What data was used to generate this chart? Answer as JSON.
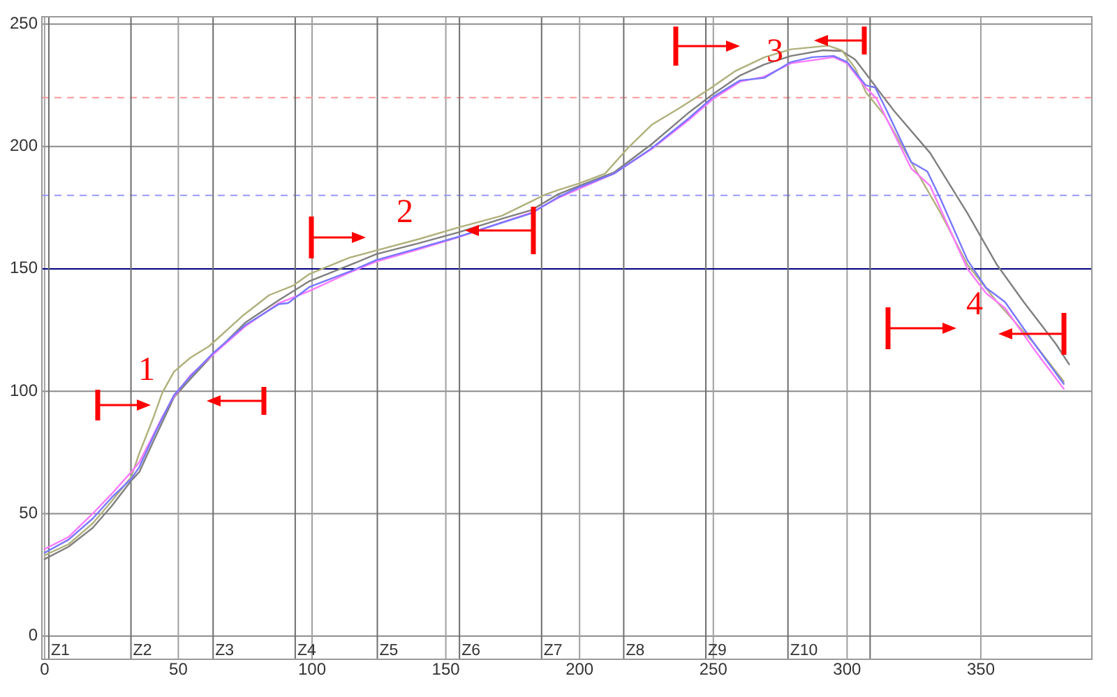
{
  "chart_data": {
    "type": "line",
    "xlim": [
      -1,
      391.5
    ],
    "xticks": [
      0,
      50,
      100,
      150,
      200,
      250,
      300,
      350
    ],
    "ylim": [
      -9.5,
      253
    ],
    "yticks": [
      0,
      50,
      100,
      150,
      200,
      250
    ],
    "grid": true,
    "series": [
      {
        "color": "#7f7f7f",
        "x": [
          0,
          9,
          18,
          25,
          32.4,
          35.4,
          40.6,
          48.4,
          54.5,
          63,
          75,
          88,
          99,
          114,
          124,
          140,
          155,
          171,
          182,
          192,
          200,
          213,
          227,
          241,
          250,
          260,
          269,
          279,
          291,
          298,
          303,
          307,
          317.5,
          331,
          345,
          356,
          366,
          378,
          383
        ],
        "values": [
          31.4,
          36.5,
          44.2,
          53,
          63.5,
          67,
          79.4,
          97.6,
          105,
          115,
          128,
          137.5,
          145,
          151.5,
          156,
          160.5,
          165,
          170.5,
          174,
          180.5,
          184,
          189.5,
          201,
          214,
          221.5,
          229,
          233.5,
          237,
          239.3,
          239,
          235.5,
          229.8,
          214.6,
          197.4,
          172.7,
          151.7,
          136.5,
          119.4,
          111
        ]
      },
      {
        "color": "#b0b07c",
        "x": [
          0,
          9,
          18,
          25,
          32.4,
          35.4,
          40.6,
          44,
          48.4,
          54.5,
          61.5,
          74,
          84,
          93,
          99,
          114,
          124,
          140,
          155,
          171,
          187,
          192,
          200,
          209.5,
          218,
          227,
          237,
          248,
          258,
          269,
          279,
          293,
          298,
          303,
          307,
          314,
          324,
          335,
          345,
          356,
          370,
          381
        ],
        "values": [
          33,
          37.5,
          46,
          55,
          65,
          74.6,
          89,
          99.4,
          108,
          113.7,
          118.4,
          130.8,
          139.3,
          143.2,
          147.9,
          154.6,
          157.5,
          162.2,
          167,
          171.7,
          180.3,
          182.2,
          185,
          188.9,
          199.3,
          208.9,
          215.5,
          223.1,
          230.7,
          236.4,
          239.7,
          241.2,
          239.3,
          232,
          222.2,
          212.7,
          193.6,
          172.7,
          151.7,
          136.5,
          119.4,
          104
        ]
      },
      {
        "color": "#ff77ff",
        "x": [
          0,
          9,
          18,
          25,
          32.4,
          35.4,
          40.6,
          44,
          48.4,
          54.5,
          63,
          75,
          87.6,
          99,
          114,
          124,
          140,
          155,
          171,
          182,
          192,
          213,
          227,
          241,
          250,
          260,
          269,
          279,
          295,
          300,
          307,
          311,
          324,
          331,
          345,
          352,
          359,
          370,
          381
        ],
        "values": [
          35.5,
          40.5,
          50,
          58,
          67,
          71,
          82,
          89.5,
          98,
          106.5,
          115,
          126.5,
          136,
          141,
          148.5,
          153,
          158,
          163,
          169,
          173,
          179,
          189,
          199,
          211,
          219.5,
          226.5,
          228.5,
          234,
          236.5,
          234,
          224,
          219.6,
          191,
          184,
          150,
          140,
          134,
          117,
          101
        ]
      },
      {
        "color": "#7777ff",
        "x": [
          0,
          9,
          18,
          25,
          32.4,
          35.4,
          40.6,
          44,
          48.4,
          54.5,
          63,
          75,
          87.6,
          91,
          99,
          114,
          124,
          140,
          155,
          171,
          182,
          192,
          199,
          213,
          227,
          241,
          250,
          260,
          269,
          279,
          287,
          295,
          300,
          307,
          310.5,
          314,
          324,
          330,
          335,
          345,
          352,
          359,
          370,
          381
        ],
        "values": [
          34,
          39.4,
          48,
          56.5,
          64.2,
          69,
          81.3,
          89,
          98.5,
          106,
          115.6,
          127,
          135.6,
          136,
          142.6,
          148.9,
          153.6,
          158.5,
          163.2,
          168.9,
          172.7,
          179.3,
          183,
          189,
          199.3,
          211.7,
          220.3,
          227,
          228,
          234.5,
          236.5,
          237,
          234.5,
          225,
          224.1,
          216.5,
          193.6,
          189.8,
          178.4,
          153.6,
          142.2,
          136.5,
          119.4,
          103
        ]
      }
    ],
    "ref_lines": [
      {
        "axis": "y",
        "value": 220,
        "color": "#ff9999",
        "line_style": "dashed"
      },
      {
        "axis": "y",
        "value": 180,
        "color": "#9999ff",
        "line_style": "dashed"
      },
      {
        "axis": "y",
        "value": 150,
        "color": "#000080",
        "line_style": "solid"
      },
      {
        "axis": "x",
        "value": 1.6,
        "label": "Z1"
      },
      {
        "axis": "x",
        "value": 32.3,
        "label": "Z2"
      },
      {
        "axis": "x",
        "value": 63,
        "label": "Z3"
      },
      {
        "axis": "x",
        "value": 93.7,
        "label": "Z4"
      },
      {
        "axis": "x",
        "value": 124.4,
        "label": "Z5"
      },
      {
        "axis": "x",
        "value": 155.1,
        "label": "Z6"
      },
      {
        "axis": "x",
        "value": 185.8,
        "label": "Z7"
      },
      {
        "axis": "x",
        "value": 216.5,
        "label": "Z8"
      },
      {
        "axis": "x",
        "value": 247.2,
        "label": "Z9"
      },
      {
        "axis": "x",
        "value": 277.9,
        "label": "Z10"
      },
      {
        "axis": "x",
        "value": 308.6
      }
    ],
    "annotations": [
      "1",
      "2",
      "3",
      "4"
    ]
  }
}
